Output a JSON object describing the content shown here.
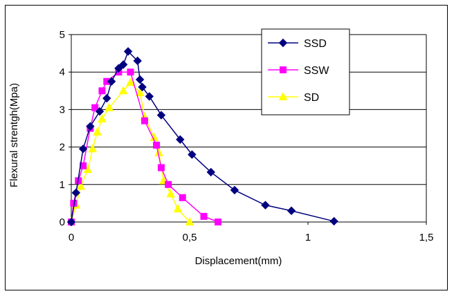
{
  "chart_data": {
    "type": "line",
    "title": "",
    "xlabel": "Displacement(mm)",
    "ylabel": "Flexural strentgh(Mpa)",
    "xlim": [
      0,
      1.5
    ],
    "ylim": [
      0,
      5
    ],
    "x_ticks": [
      0,
      0.5,
      1,
      1.5
    ],
    "x_tick_labels": [
      "0",
      "0,5",
      "1",
      "1,5"
    ],
    "y_ticks": [
      0,
      1,
      2,
      3,
      4,
      5
    ],
    "y_tick_labels": [
      "0",
      "1",
      "2",
      "3",
      "4",
      "5"
    ],
    "grid": "horizontal",
    "legend": "top-right",
    "series": [
      {
        "name": "SSD",
        "color": "#000080",
        "marker": "diamond",
        "x": [
          0,
          0.02,
          0.05,
          0.08,
          0.12,
          0.15,
          0.17,
          0.2,
          0.22,
          0.24,
          0.28,
          0.29,
          0.3,
          0.33,
          0.38,
          0.46,
          0.51,
          0.59,
          0.69,
          0.82,
          0.93,
          1.11
        ],
        "y": [
          0,
          0.78,
          1.95,
          2.55,
          2.95,
          3.3,
          3.75,
          4.1,
          4.2,
          4.55,
          4.3,
          3.8,
          3.6,
          3.35,
          2.85,
          2.2,
          1.8,
          1.33,
          0.85,
          0.45,
          0.3,
          0.02
        ]
      },
      {
        "name": "SSW",
        "color": "#ff00ff",
        "marker": "square",
        "x": [
          0,
          0.01,
          0.03,
          0.05,
          0.08,
          0.1,
          0.13,
          0.15,
          0.2,
          0.25,
          0.31,
          0.36,
          0.38,
          0.41,
          0.47,
          0.56,
          0.62
        ],
        "y": [
          0,
          0.5,
          1.1,
          1.5,
          2.5,
          3.05,
          3.5,
          3.75,
          4.0,
          4.0,
          2.7,
          2.05,
          1.45,
          1.0,
          0.65,
          0.15,
          0.0
        ]
      },
      {
        "name": "SD",
        "color": "#ffff00",
        "marker": "triangle",
        "x": [
          0,
          0.02,
          0.04,
          0.07,
          0.09,
          0.11,
          0.13,
          0.16,
          0.22,
          0.25,
          0.29,
          0.31,
          0.35,
          0.37,
          0.39,
          0.42,
          0.45,
          0.5
        ],
        "y": [
          0,
          0.45,
          0.95,
          1.4,
          1.95,
          2.4,
          2.75,
          3.05,
          3.5,
          3.72,
          3.45,
          2.8,
          2.25,
          1.85,
          1.1,
          0.75,
          0.35,
          0.0
        ]
      }
    ]
  }
}
